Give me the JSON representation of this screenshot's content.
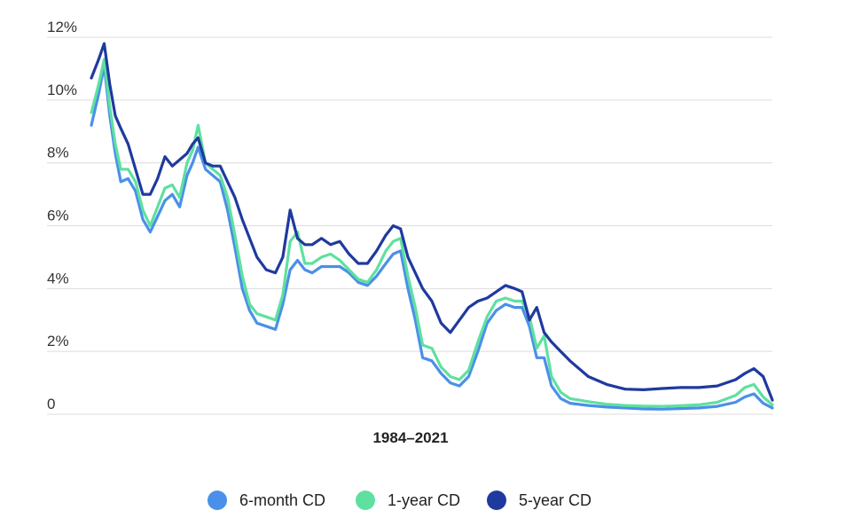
{
  "chart_data": {
    "type": "line",
    "title": "",
    "xlabel": "1984–2021",
    "ylabel": "",
    "x_range": [
      1984,
      2021
    ],
    "ylim": [
      0,
      12
    ],
    "yticks": [
      {
        "value": 0,
        "label": "0"
      },
      {
        "value": 2,
        "label": "2%"
      },
      {
        "value": 4,
        "label": "4%"
      },
      {
        "value": 6,
        "label": "6%"
      },
      {
        "value": 8,
        "label": "8%"
      },
      {
        "value": 10,
        "label": "10%"
      },
      {
        "value": 12,
        "label": "12%"
      }
    ],
    "grid": true,
    "legend_position": "bottom-center",
    "series": [
      {
        "name": "6-month CD",
        "color": "#4a90e8",
        "x": [
          1984,
          1984.4,
          1984.7,
          1985,
          1985.3,
          1985.6,
          1986,
          1986.4,
          1986.8,
          1987.2,
          1987.6,
          1988,
          1988.4,
          1988.8,
          1989.2,
          1989.5,
          1989.8,
          1990.2,
          1990.6,
          1991,
          1991.4,
          1991.8,
          1992.2,
          1992.6,
          1993,
          1993.5,
          1994,
          1994.4,
          1994.8,
          1995.2,
          1995.6,
          1996,
          1996.5,
          1997,
          1997.5,
          1998,
          1998.5,
          1999,
          1999.5,
          2000,
          2000.4,
          2000.8,
          2001.2,
          2001.6,
          2002,
          2002.5,
          2003,
          2003.5,
          2004,
          2004.5,
          2005,
          2005.5,
          2006,
          2006.5,
          2007,
          2007.4,
          2007.8,
          2008.2,
          2008.6,
          2009,
          2009.5,
          2010,
          2011,
          2012,
          2013,
          2014,
          2015,
          2016,
          2017,
          2018,
          2019,
          2019.5,
          2020,
          2020.5,
          2021
        ],
        "values": [
          9.2,
          10.2,
          11.1,
          9.5,
          8.3,
          7.4,
          7.5,
          7.1,
          6.2,
          5.8,
          6.3,
          6.8,
          7.0,
          6.6,
          7.6,
          8.0,
          8.5,
          7.8,
          7.6,
          7.4,
          6.5,
          5.3,
          4.0,
          3.3,
          2.9,
          2.8,
          2.7,
          3.5,
          4.6,
          4.9,
          4.6,
          4.5,
          4.7,
          4.7,
          4.7,
          4.5,
          4.2,
          4.1,
          4.4,
          4.8,
          5.1,
          5.2,
          4.0,
          3.0,
          1.8,
          1.7,
          1.3,
          1.0,
          0.9,
          1.2,
          2.0,
          2.9,
          3.3,
          3.5,
          3.4,
          3.4,
          2.8,
          1.8,
          1.8,
          0.9,
          0.5,
          0.35,
          0.28,
          0.23,
          0.2,
          0.17,
          0.16,
          0.18,
          0.2,
          0.25,
          0.38,
          0.55,
          0.65,
          0.35,
          0.2
        ]
      },
      {
        "name": "1-year CD",
        "color": "#5fe0a0",
        "x": [
          1984,
          1984.4,
          1984.7,
          1985,
          1985.3,
          1985.6,
          1986,
          1986.4,
          1986.8,
          1987.2,
          1987.6,
          1988,
          1988.4,
          1988.8,
          1989.2,
          1989.5,
          1989.8,
          1990.2,
          1990.6,
          1991,
          1991.4,
          1991.8,
          1992.2,
          1992.6,
          1993,
          1993.5,
          1994,
          1994.4,
          1994.8,
          1995.2,
          1995.6,
          1996,
          1996.5,
          1997,
          1997.5,
          1998,
          1998.5,
          1999,
          1999.5,
          2000,
          2000.4,
          2000.8,
          2001.2,
          2001.6,
          2002,
          2002.5,
          2003,
          2003.5,
          2004,
          2004.5,
          2005,
          2005.5,
          2006,
          2006.5,
          2007,
          2007.4,
          2007.8,
          2008.2,
          2008.6,
          2009,
          2009.5,
          2010,
          2011,
          2012,
          2013,
          2014,
          2015,
          2016,
          2017,
          2018,
          2019,
          2019.5,
          2020,
          2020.5,
          2021
        ],
        "values": [
          9.6,
          10.5,
          11.3,
          9.8,
          8.6,
          7.8,
          7.8,
          7.4,
          6.5,
          6.0,
          6.6,
          7.2,
          7.3,
          6.9,
          8.0,
          8.4,
          9.2,
          8.0,
          7.8,
          7.6,
          6.9,
          5.7,
          4.4,
          3.5,
          3.2,
          3.1,
          3.0,
          3.8,
          5.5,
          5.8,
          4.8,
          4.8,
          5.0,
          5.1,
          4.9,
          4.6,
          4.3,
          4.2,
          4.6,
          5.2,
          5.5,
          5.6,
          4.4,
          3.4,
          2.2,
          2.1,
          1.5,
          1.2,
          1.1,
          1.4,
          2.3,
          3.1,
          3.6,
          3.7,
          3.6,
          3.6,
          3.1,
          2.1,
          2.5,
          1.2,
          0.7,
          0.5,
          0.4,
          0.32,
          0.28,
          0.26,
          0.25,
          0.27,
          0.3,
          0.38,
          0.6,
          0.85,
          0.95,
          0.55,
          0.3
        ]
      },
      {
        "name": "5-year CD",
        "color": "#1f3a9e",
        "x": [
          1984,
          1984.4,
          1984.7,
          1985,
          1985.3,
          1985.6,
          1986,
          1986.4,
          1986.8,
          1987.2,
          1987.6,
          1988,
          1988.4,
          1988.8,
          1989.2,
          1989.5,
          1989.8,
          1990.2,
          1990.6,
          1991,
          1991.4,
          1991.8,
          1992.2,
          1992.6,
          1993,
          1993.5,
          1994,
          1994.4,
          1994.8,
          1995.2,
          1995.6,
          1996,
          1996.5,
          1997,
          1997.5,
          1998,
          1998.5,
          1999,
          1999.5,
          2000,
          2000.4,
          2000.8,
          2001.2,
          2001.6,
          2002,
          2002.5,
          2003,
          2003.5,
          2004,
          2004.5,
          2005,
          2005.5,
          2006,
          2006.5,
          2007,
          2007.4,
          2007.8,
          2008.2,
          2008.6,
          2009,
          2009.5,
          2010,
          2011,
          2012,
          2013,
          2014,
          2015,
          2016,
          2017,
          2018,
          2019,
          2019.5,
          2020,
          2020.5,
          2021
        ],
        "values": [
          10.7,
          11.3,
          11.8,
          10.5,
          9.5,
          9.1,
          8.6,
          7.8,
          7.0,
          7.0,
          7.5,
          8.2,
          7.9,
          8.1,
          8.3,
          8.6,
          8.8,
          8.0,
          7.9,
          7.9,
          7.4,
          6.9,
          6.2,
          5.6,
          5.0,
          4.6,
          4.5,
          5.0,
          6.5,
          5.6,
          5.4,
          5.4,
          5.6,
          5.4,
          5.5,
          5.1,
          4.8,
          4.8,
          5.2,
          5.7,
          6.0,
          5.9,
          5.0,
          4.5,
          4.0,
          3.6,
          2.9,
          2.6,
          3.0,
          3.4,
          3.6,
          3.7,
          3.9,
          4.1,
          4.0,
          3.9,
          3.0,
          3.4,
          2.6,
          2.3,
          2.0,
          1.7,
          1.2,
          0.95,
          0.8,
          0.78,
          0.82,
          0.85,
          0.85,
          0.9,
          1.1,
          1.3,
          1.45,
          1.2,
          0.45
        ]
      }
    ]
  }
}
